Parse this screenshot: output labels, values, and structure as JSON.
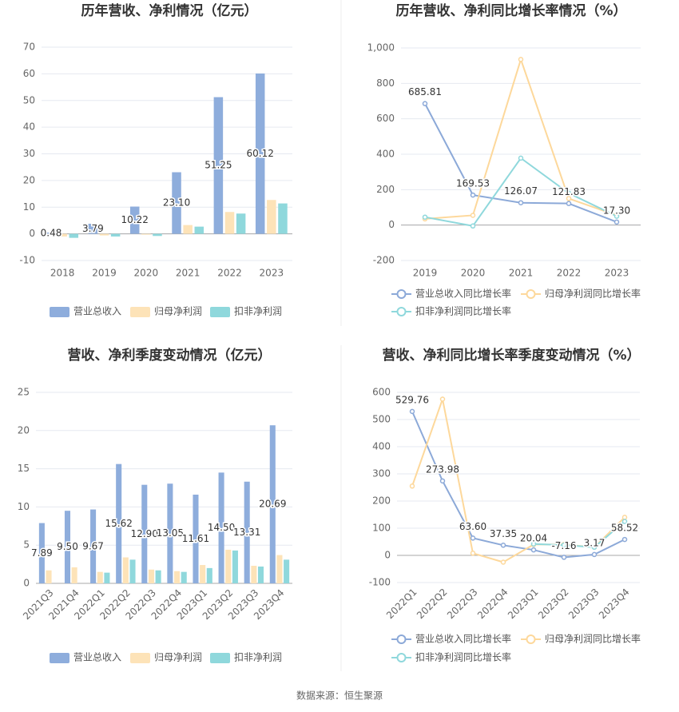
{
  "chart_data": [
    {
      "type": "bar",
      "title": "历年营收、净利情况（亿元）",
      "categories": [
        "2018",
        "2019",
        "2020",
        "2021",
        "2022",
        "2023"
      ],
      "series": [
        {
          "name": "营业总收入",
          "color": "#8eaddc",
          "values": [
            0.48,
            3.79,
            10.22,
            23.1,
            51.25,
            60.12
          ],
          "value_labels": [
            "0.48",
            "3.79",
            "10.22",
            "23.10",
            "51.25",
            "60.12"
          ]
        },
        {
          "name": "归母净利润",
          "color": "#fde3b8",
          "values": [
            -1,
            -0.6,
            -0.3,
            3.3,
            8.2,
            12.7
          ]
        },
        {
          "name": "扣非净利润",
          "color": "#8fd8dc",
          "values": [
            -1.5,
            -1,
            -0.8,
            2.7,
            7.6,
            11.4
          ]
        }
      ],
      "ylim": [
        -10,
        70
      ],
      "yticks": [
        -10,
        0,
        10,
        20,
        30,
        40,
        50,
        60,
        70
      ],
      "grid": true,
      "legend": "bottom"
    },
    {
      "type": "line",
      "title": "历年营收、净利同比增长率情况（%）",
      "categories": [
        "2019",
        "2020",
        "2021",
        "2022",
        "2023"
      ],
      "series": [
        {
          "name": "营业总收入同比增长率",
          "color": "#8ca9d8",
          "values": [
            685.81,
            169.53,
            126.07,
            121.83,
            17.3
          ],
          "value_labels": [
            "685.81",
            "169.53",
            "126.07",
            "121.83",
            "17.30"
          ]
        },
        {
          "name": "归母净利润同比增长率",
          "color": "#fdd89b",
          "values": [
            35,
            55,
            935,
            150,
            55
          ]
        },
        {
          "name": "扣非净利润同比增长率",
          "color": "#8fd8dc",
          "values": [
            45,
            -5,
            378,
            180,
            50
          ]
        }
      ],
      "ylim": [
        -200,
        1000
      ],
      "yticks": [
        -200,
        0,
        200,
        400,
        600,
        800,
        {
          "value": 1000,
          "label": "1,000"
        }
      ],
      "grid": true,
      "legend": "bottom"
    },
    {
      "type": "bar",
      "title": "营收、净利季度变动情况（亿元）",
      "categories": [
        "2021Q3",
        "2021Q4",
        "2022Q1",
        "2022Q2",
        "2022Q3",
        "2022Q4",
        "2023Q1",
        "2023Q2",
        "2023Q3",
        "2023Q4"
      ],
      "series": [
        {
          "name": "营业总收入",
          "color": "#8eaddc",
          "values": [
            7.89,
            9.5,
            9.67,
            15.62,
            12.9,
            13.05,
            11.61,
            14.5,
            13.31,
            20.69
          ],
          "value_labels": [
            "7.89",
            "9.50",
            "9.67",
            "15.62",
            "12.90",
            "13.05",
            "11.61",
            "14.50",
            "13.31",
            "20.69"
          ]
        },
        {
          "name": "归母净利润",
          "color": "#fde3b8",
          "values": [
            1.7,
            2.1,
            1.5,
            3.4,
            1.8,
            1.6,
            2.4,
            4.4,
            2.3,
            3.7
          ]
        },
        {
          "name": "扣非净利润",
          "color": "#8fd8dc",
          "values": [
            null,
            null,
            1.4,
            3.1,
            1.7,
            1.5,
            2.0,
            4.3,
            2.2,
            3.1
          ]
        }
      ],
      "ylim": [
        0,
        25
      ],
      "yticks": [
        0,
        5,
        10,
        15,
        20,
        25
      ],
      "grid": true,
      "legend": "bottom"
    },
    {
      "type": "line",
      "title": "营收、净利同比增长率季度变动情况（%）",
      "categories": [
        "2022Q1",
        "2022Q2",
        "2022Q3",
        "2022Q4",
        "2023Q1",
        "2023Q2",
        "2023Q3",
        "2023Q4"
      ],
      "series": [
        {
          "name": "营业总收入同比增长率",
          "color": "#8ca9d8",
          "values": [
            529.76,
            273.98,
            63.6,
            37.35,
            20.04,
            -7.16,
            3.17,
            58.52
          ],
          "value_labels": [
            "529.76",
            "273.98",
            "63.60",
            "37.35",
            "20.04",
            "-7.16",
            "3.17",
            "58.52"
          ]
        },
        {
          "name": "归母净利润同比增长率",
          "color": "#fdd89b",
          "values": [
            255,
            575,
            8,
            -25,
            40,
            40,
            30,
            140
          ]
        },
        {
          "name": "扣非净利润同比增长率",
          "color": "#8fd8dc",
          "values": [
            null,
            null,
            null,
            null,
            42,
            38,
            30,
            125
          ]
        }
      ],
      "ylim": [
        -100,
        600
      ],
      "yticks": [
        -100,
        0,
        100,
        200,
        300,
        400,
        500,
        600
      ],
      "grid": true,
      "legend": "bottom"
    }
  ],
  "source": "数据来源：恒生聚源"
}
